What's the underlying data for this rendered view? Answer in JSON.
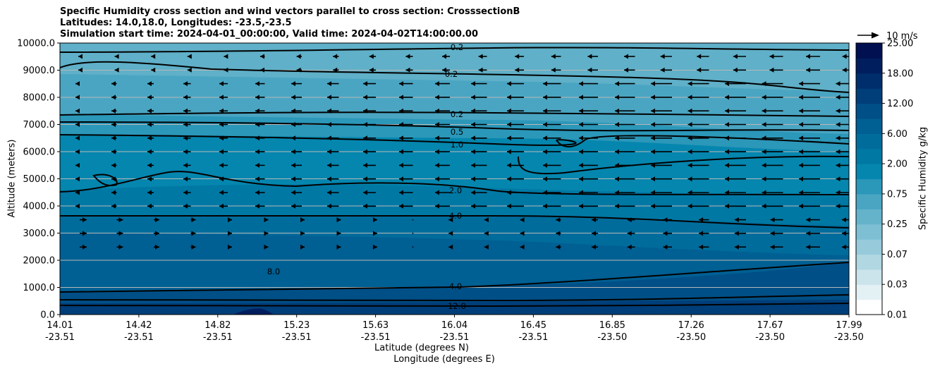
{
  "chart_data": {
    "type": "contour",
    "title_lines": [
      "Specific Humidity cross section and wind vectors parallel to cross section: CrosssectionB",
      "Latitudes: 14.0,18.0, Longitudes: -23.5,-23.5",
      "Simulation start time: 2024-04-01_00:00:00, Valid time: 2024-04-02T14:00:00.00"
    ],
    "ylabel": "Altitude (meters)",
    "xlabel_lat": "Latitude (degrees N)",
    "xlabel_lon": "Longitude (degrees E)",
    "ylim": [
      0,
      10000
    ],
    "yticks": [
      "0.0",
      "1000.0",
      "2000.0",
      "3000.0",
      "4000.0",
      "5000.0",
      "6000.0",
      "7000.0",
      "8000.0",
      "9000.0",
      "10000.0"
    ],
    "xticks": [
      {
        "lat": "14.01",
        "lon": "-23.51"
      },
      {
        "lat": "14.42",
        "lon": "-23.51"
      },
      {
        "lat": "14.82",
        "lon": "-23.51"
      },
      {
        "lat": "15.23",
        "lon": "-23.51"
      },
      {
        "lat": "15.63",
        "lon": "-23.51"
      },
      {
        "lat": "16.04",
        "lon": "-23.51"
      },
      {
        "lat": "16.45",
        "lon": "-23.51"
      },
      {
        "lat": "16.85",
        "lon": "-23.50"
      },
      {
        "lat": "17.26",
        "lon": "-23.50"
      },
      {
        "lat": "17.67",
        "lon": "-23.50"
      },
      {
        "lat": "17.99",
        "lon": "-23.50"
      }
    ],
    "colorbar": {
      "label": "Specific Humidity g/kg",
      "ticks": [
        "0.01",
        "0.03",
        "0.07",
        "0.25",
        "0.75",
        "2.00",
        "6.00",
        "12.00",
        "18.00",
        "25.00"
      ],
      "colors": [
        "#ffffff",
        "#e4f1f4",
        "#cbe4eb",
        "#b0d7e2",
        "#97cbdb",
        "#7ebfd3",
        "#65b3cb",
        "#4aa5c2",
        "#2b97b9",
        "#0586ae",
        "#0078a4",
        "#006c9c",
        "#005f93",
        "#004f87",
        "#003e79",
        "#002e6c",
        "#001e5e",
        "#001050"
      ]
    },
    "contour_labels": [
      "0.2",
      "0.2",
      "0.2",
      "0.5",
      "1.0",
      "2.0",
      "4.0",
      "4.0",
      "8.0",
      "12.0"
    ],
    "reference_vector": "10 m/s"
  }
}
